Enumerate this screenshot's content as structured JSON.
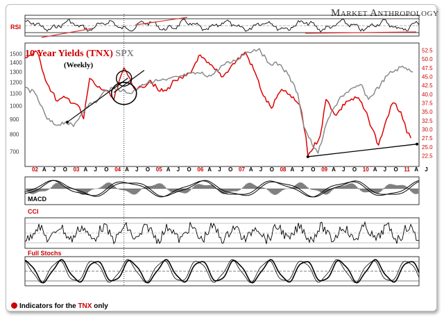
{
  "brand": {
    "first": "M",
    "rest_a": "ARKET ",
    "second": "A",
    "rest_b": "NTHROPOLOGY"
  },
  "labels": {
    "rsi": "RSI",
    "title_tnx": "10 Year Yields (TNX)",
    "title_spx": "SPX",
    "weekly": "(Weekly)",
    "macd": "MACD",
    "cci": "CCI",
    "stoch": "Full Stochs"
  },
  "note": {
    "prefix": "Indicators for the ",
    "tnx": "TNX",
    "suffix": " only"
  },
  "colors": {
    "tnx": "#dd0000",
    "spx": "#8a8a8a",
    "trend_red": "#dd3333",
    "trend_black": "#000000"
  },
  "chart_data": {
    "type": "line",
    "x_tick_labels": [
      "02",
      "A",
      "J",
      "O",
      "03",
      "A",
      "J",
      "O",
      "04",
      "A",
      "J",
      "O",
      "05",
      "A",
      "J",
      "O",
      "06",
      "A",
      "J",
      "O",
      "07",
      "A",
      "J",
      "O",
      "08",
      "A",
      "J",
      "O",
      "09",
      "A",
      "J",
      "O",
      "10",
      "A",
      "J",
      "O",
      "11",
      "A",
      "J"
    ],
    "year_ticks": [
      "02",
      "03",
      "04",
      "05",
      "06",
      "07",
      "08",
      "09",
      "10",
      "11"
    ],
    "left_axis": {
      "label": "SPX",
      "ticks": [
        1500,
        1400,
        1300,
        1200,
        1100,
        1000,
        900,
        800,
        700
      ],
      "ylim": [
        650,
        1560
      ],
      "scale": "log"
    },
    "right_axis": {
      "label": "TNX",
      "ticks": [
        52.5,
        50.0,
        47.5,
        45.0,
        42.5,
        40.0,
        37.5,
        35.0,
        32.5,
        30.0,
        27.5,
        25.0,
        22.5
      ],
      "ylim": [
        21,
        53
      ]
    },
    "series": [
      {
        "name": "10 Year Yields (TNX)",
        "axis": "right",
        "x": [
          2002.0,
          2002.3,
          2002.55,
          2002.8,
          2003.0,
          2003.3,
          2003.45,
          2003.6,
          2003.8,
          2004.0,
          2004.2,
          2004.45,
          2004.6,
          2004.75,
          2004.9,
          2005.1,
          2005.3,
          2005.5,
          2005.7,
          2005.9,
          2006.1,
          2006.3,
          2006.5,
          2006.7,
          2006.9,
          2007.1,
          2007.45,
          2007.7,
          2007.9,
          2008.1,
          2008.3,
          2008.45,
          2008.6,
          2008.8,
          2008.95,
          2009.0,
          2009.3,
          2009.45,
          2009.7,
          2009.95,
          2010.25,
          2010.5,
          2010.75,
          2010.95,
          2011.1,
          2011.3,
          2011.45,
          2011.55
        ],
        "values": [
          50.5,
          52,
          43,
          38,
          39,
          37,
          33,
          44.5,
          42,
          41,
          38.5,
          47.5,
          44.5,
          41,
          42,
          44,
          41,
          41,
          44,
          44.5,
          46,
          51,
          49,
          47,
          45,
          48,
          52,
          46,
          39.5,
          36,
          40.5,
          41,
          39,
          37,
          28,
          22.5,
          28,
          38.5,
          34,
          38,
          39,
          33,
          25.5,
          33,
          37.5,
          35,
          29,
          27.5
        ]
      },
      {
        "name": "SPX",
        "axis": "left",
        "x": [
          2002.0,
          2002.25,
          2002.55,
          2002.75,
          2003.0,
          2003.2,
          2003.5,
          2003.8,
          2004.0,
          2004.3,
          2004.6,
          2004.9,
          2005.2,
          2005.5,
          2005.9,
          2006.3,
          2006.6,
          2006.9,
          2007.2,
          2007.5,
          2007.8,
          2008.0,
          2008.3,
          2008.5,
          2008.75,
          2008.9,
          2009.15,
          2009.25,
          2009.5,
          2009.8,
          2010.0,
          2010.3,
          2010.5,
          2010.8,
          2011.0,
          2011.3,
          2011.5,
          2011.6
        ],
        "values": [
          1150,
          1100,
          900,
          860,
          880,
          850,
          990,
          1040,
          1130,
          1140,
          1100,
          1180,
          1210,
          1220,
          1260,
          1290,
          1260,
          1370,
          1420,
          1520,
          1560,
          1400,
          1380,
          1280,
          1100,
          850,
          720,
          690,
          900,
          1070,
          1110,
          1180,
          1050,
          1180,
          1280,
          1350,
          1330,
          1300
        ]
      }
    ],
    "annotations": [
      "Black support trendline on SPX 2003-2004",
      "Black trendline connecting 2009 and 2011 TNX lows",
      "Red trendlines on RSI panel",
      "Circles around mid-2004 TNX high and SPX low",
      "Dotted vertical marker at mid-2004"
    ]
  }
}
